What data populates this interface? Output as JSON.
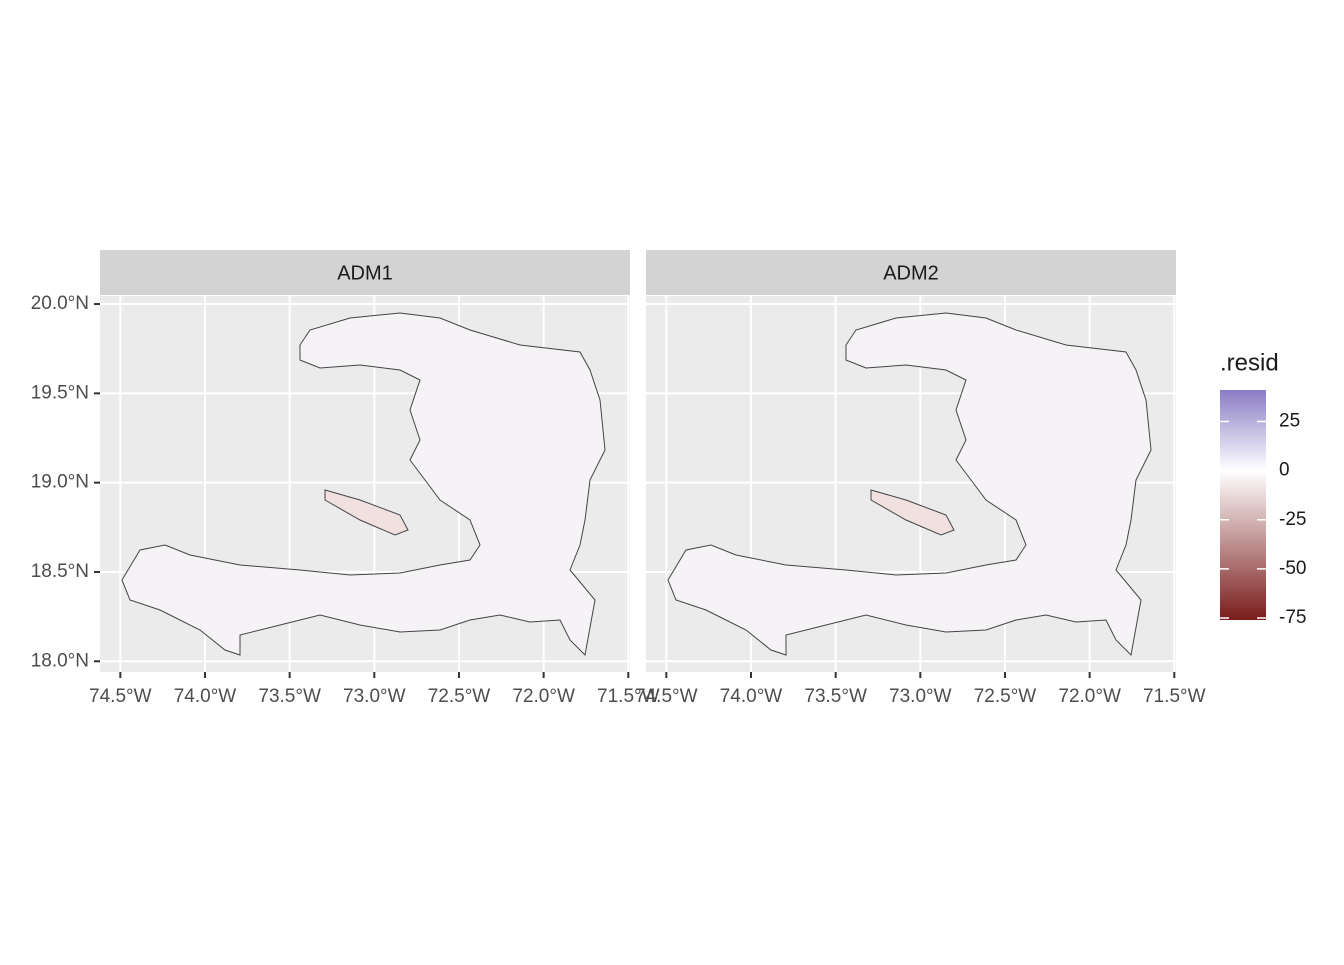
{
  "chart_data": {
    "type": "map",
    "facets": [
      "ADM1",
      "ADM2"
    ],
    "xlim": [
      -74.62,
      -71.49
    ],
    "ylim": [
      17.94,
      20.045
    ],
    "xticks": [
      {
        "value": -74.5,
        "label": "74.5°W"
      },
      {
        "value": -74.0,
        "label": "74.0°W"
      },
      {
        "value": -73.5,
        "label": "73.5°W"
      },
      {
        "value": -73.0,
        "label": "73.0°W"
      },
      {
        "value": -72.5,
        "label": "72.5°W"
      },
      {
        "value": -72.0,
        "label": "72.0°W"
      },
      {
        "value": -71.5,
        "label": "71.5°W"
      }
    ],
    "yticks": [
      {
        "value": 18.0,
        "label": "18.0°N"
      },
      {
        "value": 18.5,
        "label": "18.5°N"
      },
      {
        "value": 19.0,
        "label": "19.0°N"
      },
      {
        "value": 19.5,
        "label": "19.5°N"
      },
      {
        "value": 20.0,
        "label": "20.0°N"
      }
    ],
    "grid": true,
    "legend": {
      "title": ".resid",
      "limits": [
        -76,
        41
      ],
      "ticks": [
        25,
        0,
        -25,
        -50,
        -75
      ],
      "colors": {
        "low": "#7a1c1c",
        "mid": "#ffffff",
        "high": "#8a7cc6"
      }
    }
  }
}
